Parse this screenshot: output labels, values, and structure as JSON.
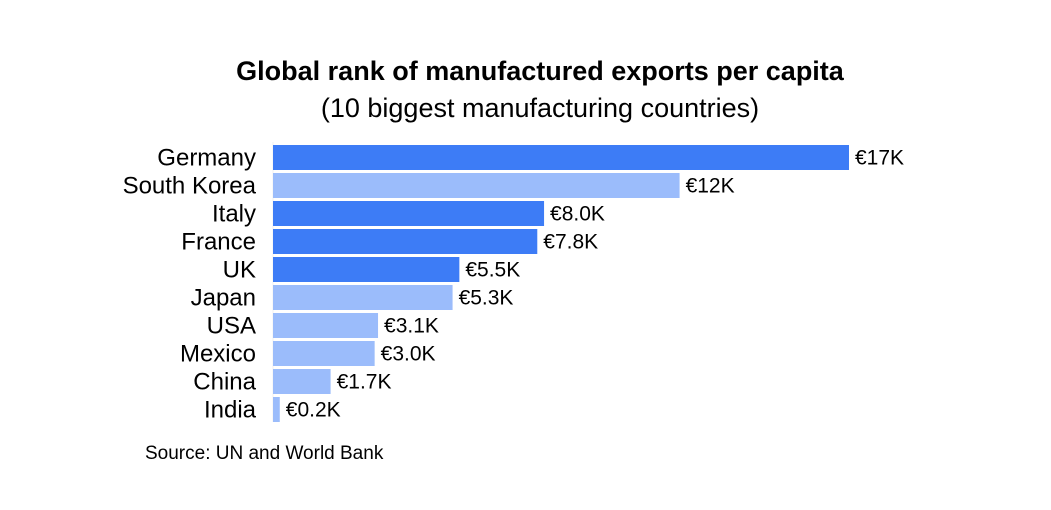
{
  "title": "Global rank of manufactured exports per capita",
  "subtitle": "(10 biggest manufacturing countries)",
  "source": "Source: UN and World Bank",
  "colors": {
    "highlight": "#3d7cf6",
    "normal": "#9bbcfb"
  },
  "chart_data": {
    "type": "bar",
    "orientation": "horizontal",
    "title": "Global rank of manufactured exports per capita",
    "subtitle": "(10 biggest manufacturing countries)",
    "categories": [
      "Germany",
      "South Korea",
      "Italy",
      "France",
      "UK",
      "Japan",
      "USA",
      "Mexico",
      "China",
      "India"
    ],
    "values": [
      17,
      12,
      8.0,
      7.8,
      5.5,
      5.3,
      3.1,
      3.0,
      1.7,
      0.2
    ],
    "value_labels": [
      "€17K",
      "€12K",
      "€8.0K",
      "€7.8K",
      "€5.5K",
      "€5.3K",
      "€3.1K",
      "€3.0K",
      "€1.7K",
      "€0.2K"
    ],
    "highlight": [
      true,
      false,
      true,
      true,
      true,
      false,
      false,
      false,
      false,
      false
    ],
    "unit": "thousand euros",
    "xlim": [
      0,
      17
    ],
    "grid": false,
    "legend": "none"
  }
}
